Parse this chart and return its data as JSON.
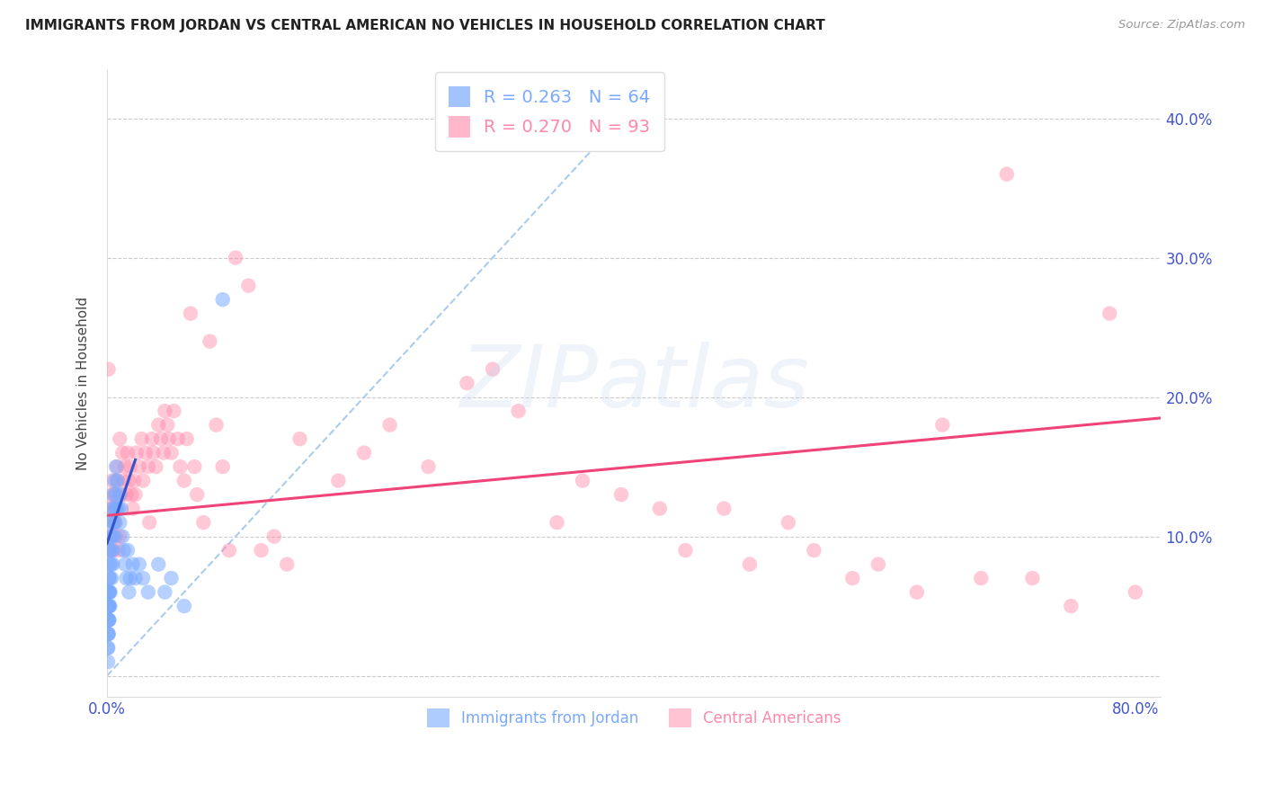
{
  "title": "IMMIGRANTS FROM JORDAN VS CENTRAL AMERICAN NO VEHICLES IN HOUSEHOLD CORRELATION CHART",
  "source": "Source: ZipAtlas.com",
  "ylabel": "No Vehicles in Household",
  "xlim": [
    0.0,
    0.82
  ],
  "ylim": [
    -0.015,
    0.435
  ],
  "ytick_positions": [
    0.0,
    0.1,
    0.2,
    0.3,
    0.4
  ],
  "yticklabels_right": [
    "",
    "10.0%",
    "20.0%",
    "30.0%",
    "40.0%"
  ],
  "xtick_positions": [
    0.0,
    0.1,
    0.2,
    0.3,
    0.4,
    0.5,
    0.6,
    0.7,
    0.8
  ],
  "xticklabels": [
    "0.0%",
    "",
    "",
    "",
    "",
    "",
    "",
    "",
    "80.0%"
  ],
  "jordan_color": "#7aaaff",
  "central_color": "#ff88aa",
  "jordan_line_color": "#3355cc",
  "central_line_color": "#ee4477",
  "diag_color": "#aaccee",
  "jordan_R": 0.263,
  "jordan_N": 64,
  "central_R": 0.27,
  "central_N": 93,
  "axis_tick_color": "#4455cc",
  "grid_color": "#cccccc",
  "background_color": "#ffffff",
  "jordan_x": [
    0.0005,
    0.0006,
    0.0007,
    0.0008,
    0.0008,
    0.0009,
    0.001,
    0.001,
    0.001,
    0.0012,
    0.0013,
    0.0013,
    0.0014,
    0.0015,
    0.0015,
    0.0016,
    0.0017,
    0.0018,
    0.002,
    0.002,
    0.002,
    0.0022,
    0.0023,
    0.0025,
    0.003,
    0.003,
    0.003,
    0.0032,
    0.0035,
    0.004,
    0.004,
    0.0042,
    0.0045,
    0.005,
    0.005,
    0.0055,
    0.006,
    0.006,
    0.0065,
    0.007,
    0.007,
    0.0075,
    0.008,
    0.009,
    0.01,
    0.01,
    0.011,
    0.012,
    0.013,
    0.014,
    0.015,
    0.016,
    0.017,
    0.018,
    0.02,
    0.022,
    0.025,
    0.028,
    0.032,
    0.04,
    0.045,
    0.05,
    0.06,
    0.09
  ],
  "jordan_y": [
    0.02,
    0.03,
    0.01,
    0.02,
    0.04,
    0.03,
    0.05,
    0.06,
    0.04,
    0.03,
    0.05,
    0.06,
    0.04,
    0.07,
    0.05,
    0.06,
    0.04,
    0.05,
    0.08,
    0.06,
    0.09,
    0.07,
    0.05,
    0.06,
    0.09,
    0.1,
    0.11,
    0.08,
    0.07,
    0.1,
    0.12,
    0.09,
    0.08,
    0.11,
    0.13,
    0.1,
    0.12,
    0.14,
    0.11,
    0.13,
    0.15,
    0.12,
    0.14,
    0.12,
    0.13,
    0.11,
    0.12,
    0.1,
    0.09,
    0.08,
    0.07,
    0.09,
    0.06,
    0.07,
    0.08,
    0.07,
    0.08,
    0.07,
    0.06,
    0.08,
    0.06,
    0.07,
    0.05,
    0.27
  ],
  "central_x": [
    0.001,
    0.001,
    0.002,
    0.002,
    0.003,
    0.003,
    0.004,
    0.004,
    0.005,
    0.005,
    0.006,
    0.006,
    0.007,
    0.007,
    0.008,
    0.008,
    0.009,
    0.01,
    0.01,
    0.011,
    0.012,
    0.013,
    0.014,
    0.015,
    0.016,
    0.017,
    0.018,
    0.019,
    0.02,
    0.021,
    0.022,
    0.023,
    0.025,
    0.027,
    0.028,
    0.03,
    0.032,
    0.033,
    0.035,
    0.036,
    0.038,
    0.04,
    0.042,
    0.044,
    0.045,
    0.047,
    0.048,
    0.05,
    0.052,
    0.055,
    0.057,
    0.06,
    0.062,
    0.065,
    0.068,
    0.07,
    0.075,
    0.08,
    0.085,
    0.09,
    0.095,
    0.1,
    0.11,
    0.12,
    0.13,
    0.14,
    0.15,
    0.18,
    0.2,
    0.22,
    0.25,
    0.28,
    0.3,
    0.32,
    0.35,
    0.37,
    0.4,
    0.43,
    0.45,
    0.48,
    0.5,
    0.53,
    0.55,
    0.58,
    0.6,
    0.63,
    0.65,
    0.68,
    0.7,
    0.72,
    0.75,
    0.78,
    0.8
  ],
  "central_y": [
    0.22,
    0.09,
    0.1,
    0.12,
    0.1,
    0.13,
    0.12,
    0.14,
    0.09,
    0.11,
    0.11,
    0.13,
    0.1,
    0.12,
    0.14,
    0.15,
    0.09,
    0.1,
    0.17,
    0.13,
    0.16,
    0.14,
    0.15,
    0.13,
    0.16,
    0.14,
    0.15,
    0.13,
    0.12,
    0.14,
    0.13,
    0.16,
    0.15,
    0.17,
    0.14,
    0.16,
    0.15,
    0.11,
    0.17,
    0.16,
    0.15,
    0.18,
    0.17,
    0.16,
    0.19,
    0.18,
    0.17,
    0.16,
    0.19,
    0.17,
    0.15,
    0.14,
    0.17,
    0.26,
    0.15,
    0.13,
    0.11,
    0.24,
    0.18,
    0.15,
    0.09,
    0.3,
    0.28,
    0.09,
    0.1,
    0.08,
    0.17,
    0.14,
    0.16,
    0.18,
    0.15,
    0.21,
    0.22,
    0.19,
    0.11,
    0.14,
    0.13,
    0.12,
    0.09,
    0.12,
    0.08,
    0.11,
    0.09,
    0.07,
    0.08,
    0.06,
    0.18,
    0.07,
    0.36,
    0.07,
    0.05,
    0.26,
    0.06
  ],
  "jordan_trend_start_x": 0.0,
  "jordan_trend_end_x": 0.022,
  "jordan_trend_start_y": 0.095,
  "jordan_trend_end_y": 0.155,
  "central_trend_start_x": 0.0,
  "central_trend_end_x": 0.82,
  "central_trend_start_y": 0.115,
  "central_trend_end_y": 0.185
}
